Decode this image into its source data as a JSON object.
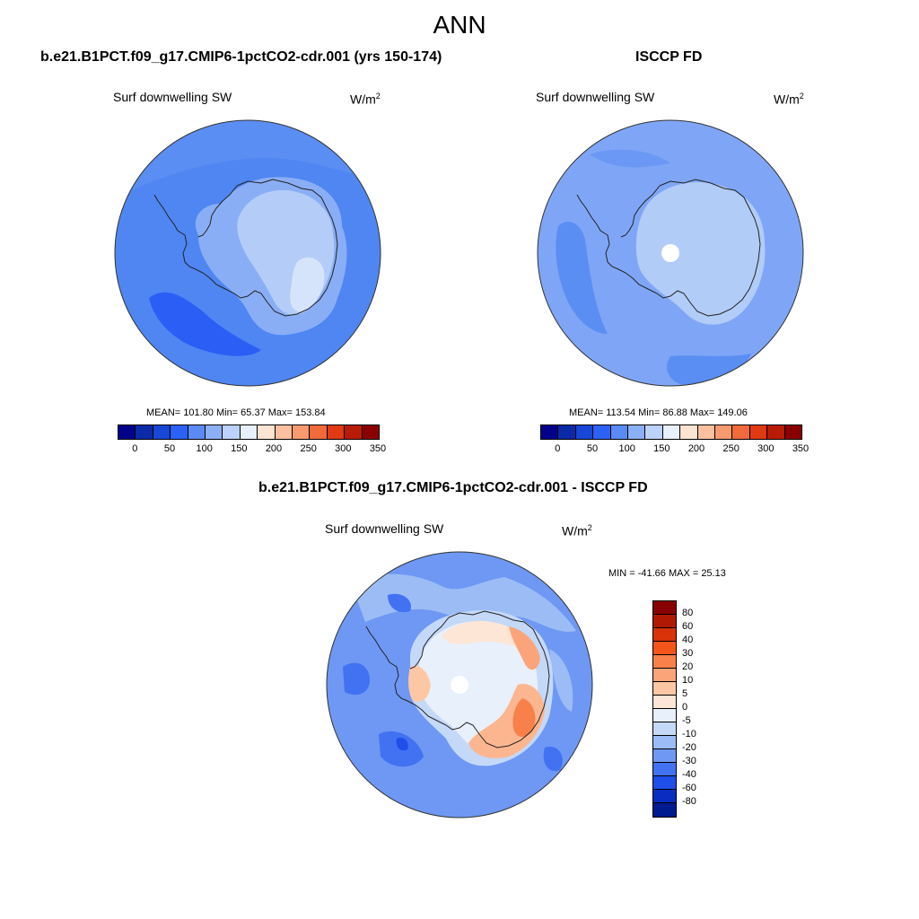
{
  "title": "ANN",
  "panels": {
    "model": {
      "title": "b.e21.B1PCT.f09_g17.CMIP6-1pctCO2-cdr.001 (yrs 150-174)",
      "variable": "Surf downwelling SW",
      "units": "W/m",
      "units_sup": "2",
      "stats": "MEAN= 101.80  Min=  65.37  Max= 153.84"
    },
    "obs": {
      "title": "ISCCP FD",
      "variable": "Surf downwelling SW",
      "units": "W/m",
      "units_sup": "2",
      "stats": "MEAN= 113.54  Min=  86.88  Max= 149.06"
    },
    "diff": {
      "title": "b.e21.B1PCT.f09_g17.CMIP6-1pctCO2-cdr.001 - ISCCP FD",
      "variable": "Surf downwelling SW",
      "units": "W/m",
      "units_sup": "2",
      "stats": "MIN = -41.66 MAX =  25.13"
    }
  },
  "colorbar_abs": {
    "ticks": [
      "0",
      "50",
      "100",
      "150",
      "200",
      "250",
      "300",
      "350"
    ],
    "colors": [
      "#00008b",
      "#0a2aa8",
      "#1846d6",
      "#2b62f5",
      "#5b8af5",
      "#8cb0f7",
      "#bcd2fa",
      "#e8f0fb",
      "#fde3d2",
      "#fcc0a0",
      "#f89a70",
      "#f06a3c",
      "#e03a14",
      "#b81c06",
      "#8a0000"
    ]
  },
  "colorbar_diff": {
    "ticks": [
      "80",
      "60",
      "40",
      "30",
      "20",
      "10",
      "5",
      "0",
      "-5",
      "-10",
      "-20",
      "-30",
      "-40",
      "-60",
      "-80"
    ],
    "colors": [
      "#8a0000",
      "#b01a04",
      "#d83208",
      "#f5541a",
      "#f8804a",
      "#fba47a",
      "#fdc7a6",
      "#fde6d6",
      "#e8f0fb",
      "#c4d8f8",
      "#9cbcf5",
      "#6e98f3",
      "#4272f2",
      "#1f4ee8",
      "#0a2cc0",
      "#001a90"
    ]
  }
}
